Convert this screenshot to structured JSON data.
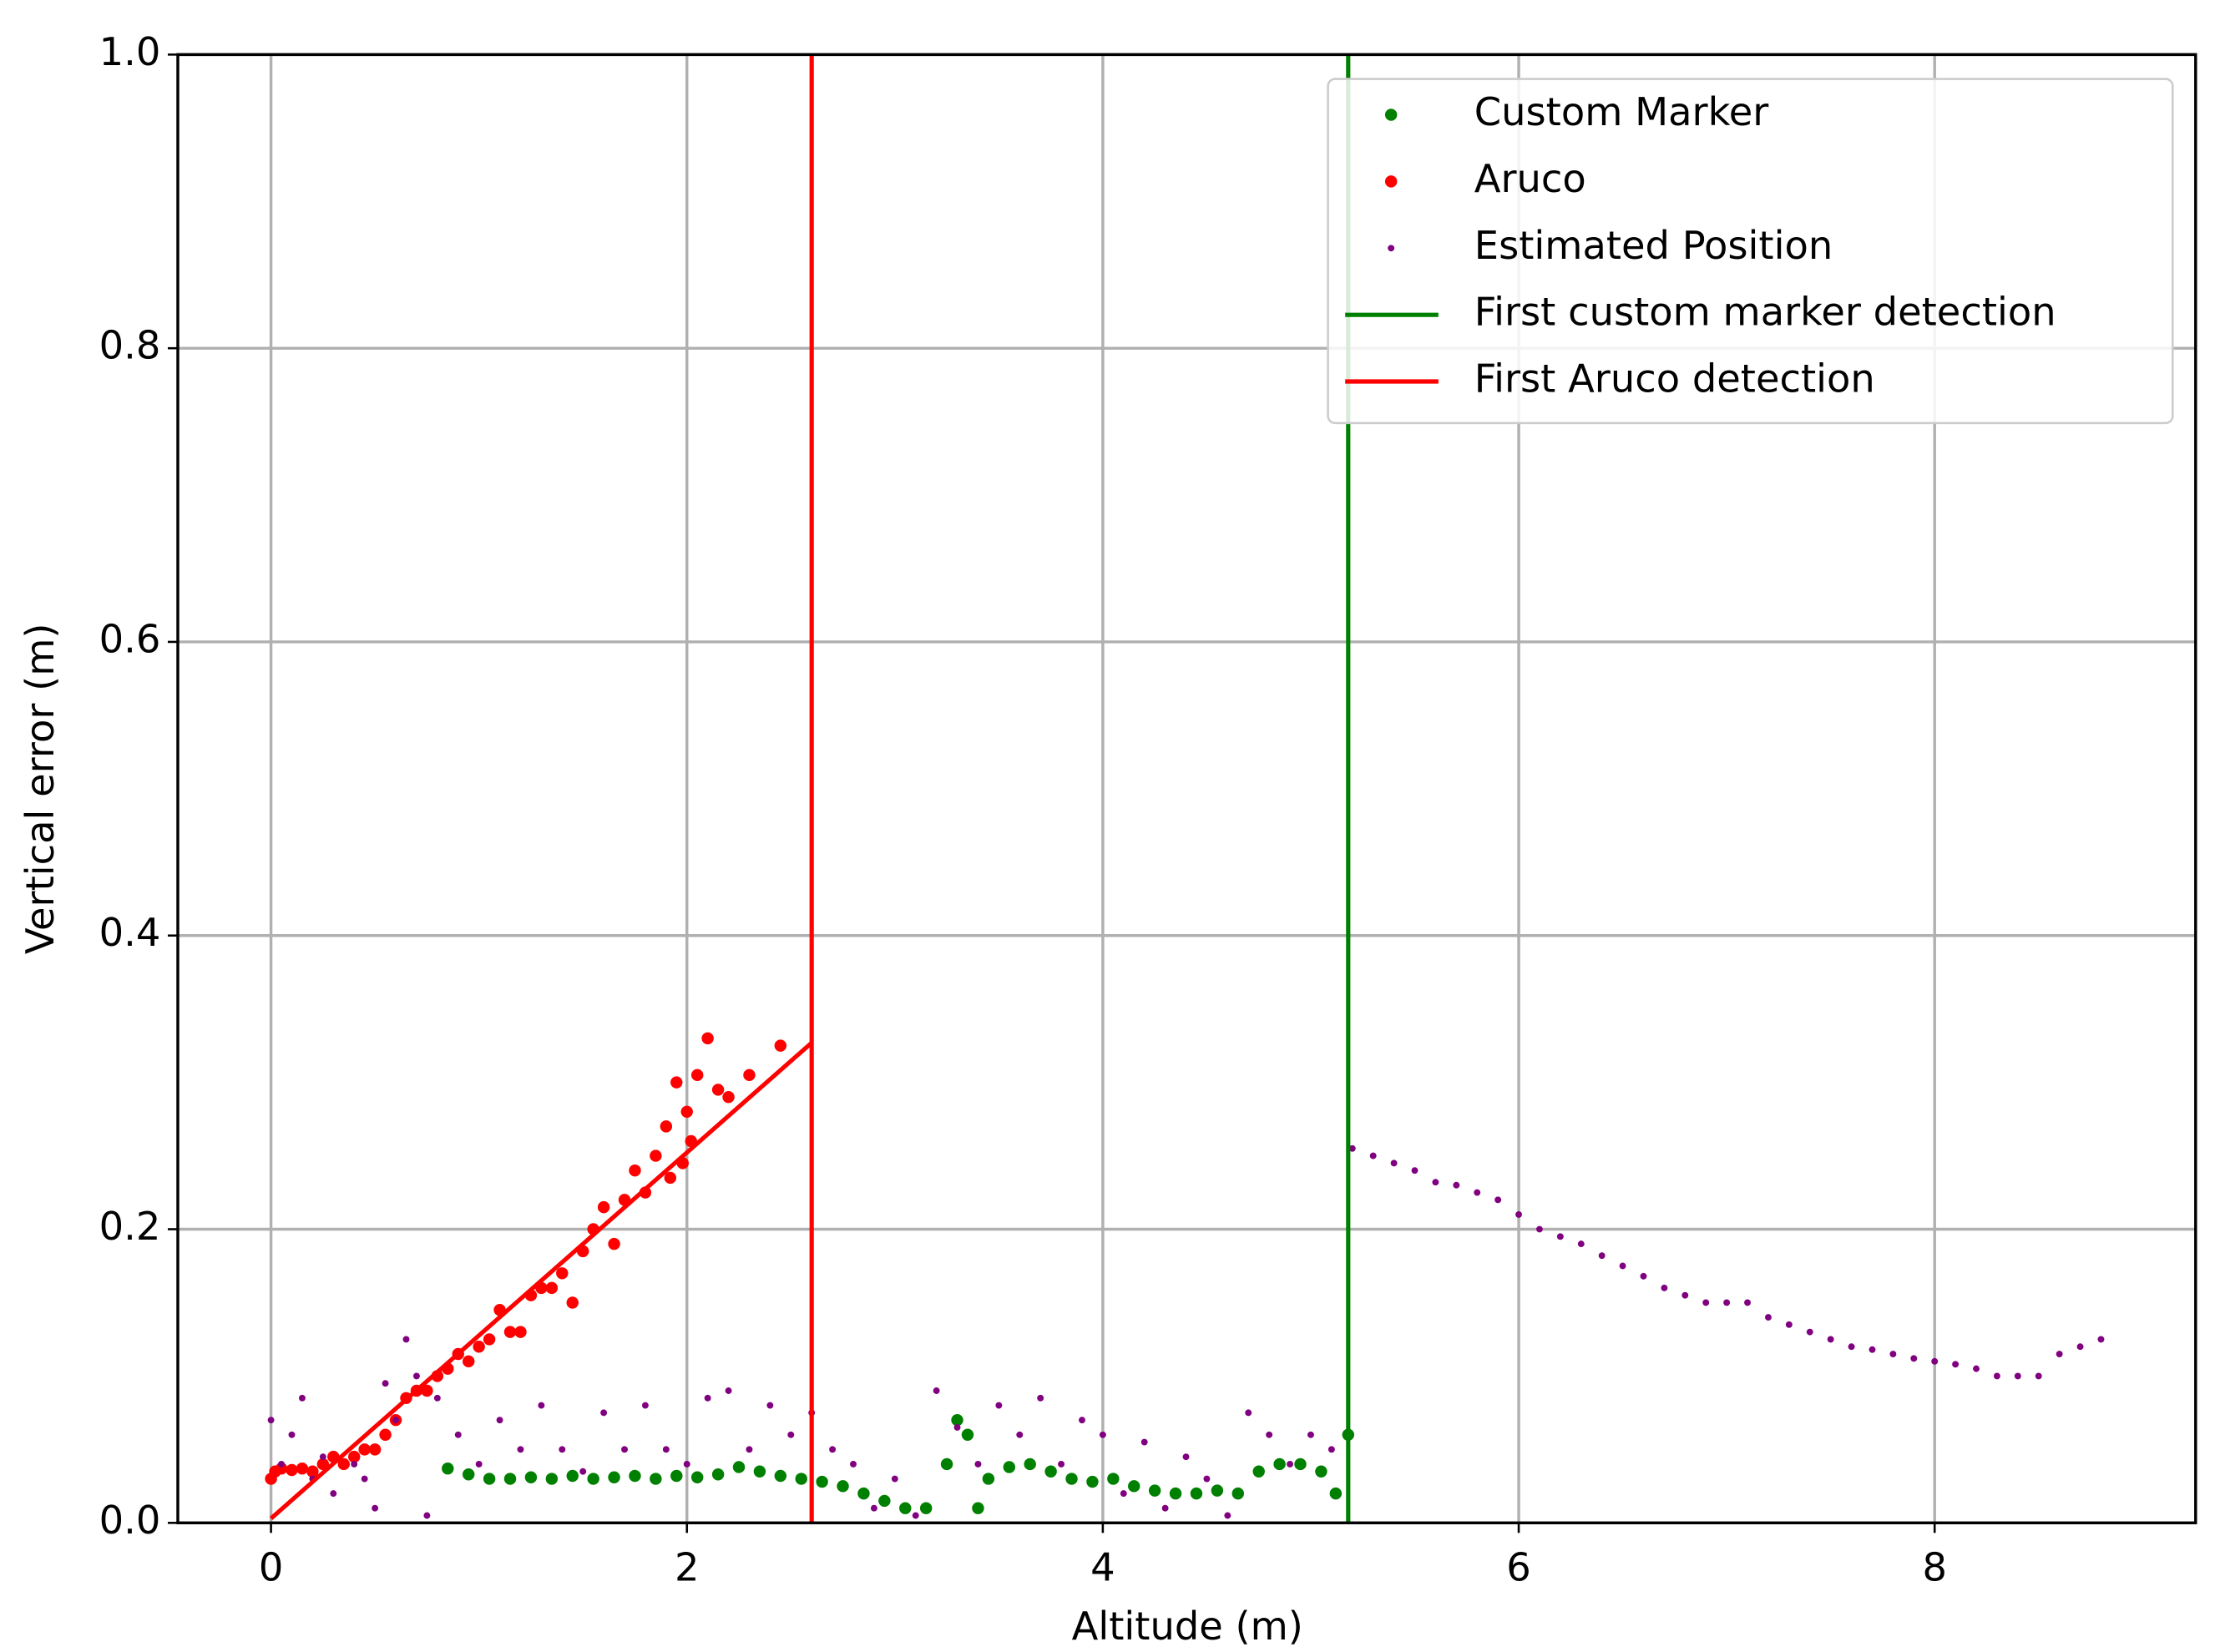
{
  "chart_data": {
    "type": "scatter",
    "x_label": "Altitude (m)",
    "y_label": "Vertical error (m)",
    "xlim": [
      -0.448,
      9.255
    ],
    "ylim": [
      0,
      1
    ],
    "xticks": [
      0,
      2,
      4,
      6,
      8
    ],
    "yticks": [
      {
        "value": 0,
        "label": "0.0"
      },
      0.2,
      0.4,
      0.6,
      0.8,
      {
        "value": 1,
        "label": "1.0"
      }
    ],
    "grid": true,
    "legend": "upper right",
    "series": [
      {
        "name": "Custom Marker",
        "color": "#008000",
        "marker": "dot",
        "x": [
          0.85,
          0.95,
          1.05,
          1.15,
          1.25,
          1.35,
          1.45,
          1.55,
          1.65,
          1.75,
          1.85,
          1.95,
          2.05,
          2.15,
          2.25,
          2.35,
          2.45,
          2.55,
          2.65,
          2.75,
          2.85,
          2.95,
          3.05,
          3.15,
          3.25,
          3.3,
          3.35,
          3.4,
          3.45,
          3.55,
          3.65,
          3.75,
          3.85,
          3.95,
          4.05,
          4.15,
          4.25,
          4.35,
          4.45,
          4.55,
          4.65,
          4.75,
          4.85,
          4.95,
          5.05,
          5.12,
          5.18
        ],
        "y": [
          0.037,
          0.033,
          0.03,
          0.03,
          0.031,
          0.03,
          0.032,
          0.03,
          0.031,
          0.032,
          0.03,
          0.032,
          0.031,
          0.033,
          0.038,
          0.035,
          0.032,
          0.03,
          0.028,
          0.025,
          0.02,
          0.015,
          0.01,
          0.01,
          0.04,
          0.07,
          0.06,
          0.01,
          0.03,
          0.038,
          0.04,
          0.035,
          0.03,
          0.028,
          0.03,
          0.025,
          0.022,
          0.02,
          0.02,
          0.022,
          0.02,
          0.035,
          0.04,
          0.04,
          0.035,
          0.02,
          0.06
        ]
      },
      {
        "name": "Aruco",
        "color": "#ff0000",
        "marker": "dot",
        "x": [
          0,
          0.02,
          0.05,
          0.1,
          0.15,
          0.2,
          0.25,
          0.3,
          0.35,
          0.4,
          0.45,
          0.5,
          0.55,
          0.6,
          0.65,
          0.7,
          0.75,
          0.8,
          0.85,
          0.9,
          0.95,
          1.0,
          1.05,
          1.1,
          1.15,
          1.2,
          1.25,
          1.3,
          1.35,
          1.4,
          1.45,
          1.5,
          1.55,
          1.6,
          1.65,
          1.7,
          1.75,
          1.8,
          1.85,
          1.9,
          1.95,
          2.0,
          2.05,
          2.1,
          2.15,
          2.2,
          2.3,
          2.45,
          1.92,
          1.98,
          2.02
        ],
        "y": [
          0.03,
          0.035,
          0.037,
          0.036,
          0.037,
          0.035,
          0.04,
          0.045,
          0.04,
          0.045,
          0.05,
          0.05,
          0.06,
          0.07,
          0.085,
          0.09,
          0.09,
          0.1,
          0.105,
          0.115,
          0.11,
          0.12,
          0.125,
          0.145,
          0.13,
          0.13,
          0.155,
          0.16,
          0.16,
          0.17,
          0.15,
          0.185,
          0.2,
          0.215,
          0.19,
          0.22,
          0.24,
          0.225,
          0.25,
          0.27,
          0.3,
          0.28,
          0.305,
          0.33,
          0.295,
          0.29,
          0.305,
          0.325,
          0.235,
          0.245,
          0.26
        ]
      },
      {
        "name": "Estimated Position",
        "color": "#800080",
        "marker": "point",
        "x": [
          0,
          0.05,
          0.1,
          0.15,
          0.2,
          0.25,
          0.3,
          0.4,
          0.45,
          0.5,
          0.55,
          0.6,
          0.65,
          0.7,
          0.75,
          0.8,
          0.9,
          1.0,
          1.1,
          1.2,
          1.3,
          1.4,
          1.5,
          1.6,
          1.7,
          1.8,
          1.9,
          2.0,
          2.1,
          2.2,
          2.3,
          2.4,
          2.5,
          2.6,
          2.7,
          2.8,
          2.9,
          3.0,
          3.1,
          3.2,
          3.3,
          3.4,
          3.5,
          3.6,
          3.7,
          3.8,
          3.9,
          4.0,
          4.1,
          4.2,
          4.3,
          4.4,
          4.5,
          4.6,
          4.7,
          4.8,
          4.9,
          5.0,
          5.1,
          5.2,
          5.3,
          5.4,
          5.5,
          5.6,
          5.7,
          5.8,
          5.9,
          6.0,
          6.1,
          6.2,
          6.3,
          6.4,
          6.5,
          6.6,
          6.7,
          6.8,
          6.9,
          7.0,
          7.1,
          7.2,
          7.3,
          7.4,
          7.5,
          7.6,
          7.7,
          7.8,
          7.9,
          8.0,
          8.1,
          8.2,
          8.3,
          8.4,
          8.5,
          8.6,
          8.7,
          8.8
        ],
        "y": [
          0.07,
          0.04,
          0.06,
          0.085,
          0.03,
          0.045,
          0.02,
          0.04,
          0.03,
          0.01,
          0.095,
          0.07,
          0.125,
          0.1,
          0.005,
          0.085,
          0.06,
          0.04,
          0.07,
          0.05,
          0.08,
          0.05,
          0.035,
          0.075,
          0.05,
          0.08,
          0.05,
          0.04,
          0.085,
          0.09,
          0.05,
          0.08,
          0.06,
          0.075,
          0.05,
          0.04,
          0.01,
          0.03,
          0.005,
          0.09,
          0.065,
          0.04,
          0.08,
          0.06,
          0.085,
          0.04,
          0.07,
          0.06,
          0.02,
          0.055,
          0.01,
          0.045,
          0.03,
          0.005,
          0.075,
          0.06,
          0.04,
          0.06,
          0.05,
          0.255,
          0.25,
          0.245,
          0.24,
          0.232,
          0.23,
          0.225,
          0.22,
          0.21,
          0.2,
          0.195,
          0.19,
          0.182,
          0.175,
          0.168,
          0.16,
          0.155,
          0.15,
          0.15,
          0.15,
          0.14,
          0.135,
          0.13,
          0.125,
          0.12,
          0.118,
          0.115,
          0.112,
          0.11,
          0.108,
          0.105,
          0.1,
          0.1,
          0.1,
          0.115,
          0.12,
          0.125
        ]
      },
      {
        "name": "First custom marker detection",
        "color": "#008000",
        "marker": "vline",
        "x": 5.18
      },
      {
        "name": "First Aruco detection",
        "color": "#ff0000",
        "marker": "vline",
        "x": 2.6
      },
      {
        "color": "#ff0000",
        "marker": "line",
        "x": [
          0,
          2.6
        ],
        "y": [
          0.003,
          0.327
        ]
      }
    ]
  }
}
